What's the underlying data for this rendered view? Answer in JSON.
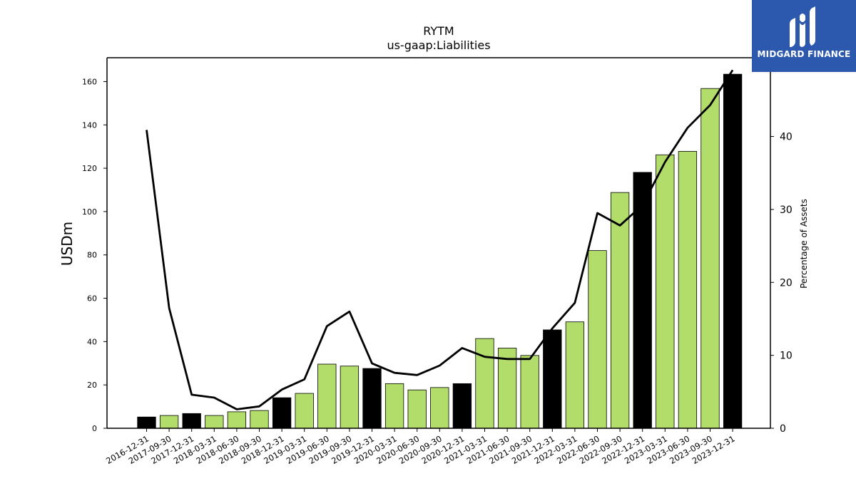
{
  "chart_data": {
    "type": "bar",
    "title": "RYTM",
    "subtitle": "us-gaap:Liabilities",
    "ylabel": "USDm",
    "y2label": "Percentage of Assets",
    "ylim": [
      0,
      171
    ],
    "y2lim": [
      0,
      50.8
    ],
    "yticks": [
      0,
      20,
      40,
      60,
      80,
      100,
      120,
      140,
      160
    ],
    "y2ticks": [
      0,
      10,
      20,
      30,
      40
    ],
    "categories": [
      "2016-12-31",
      "2017-09-30",
      "2017-12-31",
      "2018-03-31",
      "2018-06-30",
      "2018-09-30",
      "2018-12-31",
      "2019-03-31",
      "2019-06-30",
      "2019-09-30",
      "2019-12-31",
      "2020-03-31",
      "2020-06-30",
      "2020-09-30",
      "2020-12-31",
      "2021-03-31",
      "2021-06-30",
      "2021-09-30",
      "2021-12-31",
      "2022-03-31",
      "2022-06-30",
      "2022-09-30",
      "2022-12-31",
      "2023-03-31",
      "2023-06-30",
      "2023-09-30",
      "2023-12-31"
    ],
    "series": [
      {
        "values": [
          5.2,
          5.9,
          6.8,
          5.9,
          7.6,
          8.2,
          14.1,
          16.1,
          29.6,
          28.7,
          27.6,
          20.6,
          17.7,
          18.8,
          20.6,
          41.4,
          37.0,
          33.6,
          45.4,
          49.1,
          82.0,
          108.8,
          118.1,
          126.2,
          127.8,
          156.8,
          163.4
        ],
        "colors": [
          "#000000",
          "#b3dd6b",
          "#000000",
          "#b3dd6b",
          "#b3dd6b",
          "#b3dd6b",
          "#000000",
          "#b3dd6b",
          "#b3dd6b",
          "#b3dd6b",
          "#000000",
          "#b3dd6b",
          "#b3dd6b",
          "#b3dd6b",
          "#000000",
          "#b3dd6b",
          "#b3dd6b",
          "#b3dd6b",
          "#000000",
          "#b3dd6b",
          "#b3dd6b",
          "#b3dd6b",
          "#000000",
          "#b3dd6b",
          "#b3dd6b",
          "#b3dd6b",
          "#000000"
        ]
      },
      {
        "type": "line",
        "axis": "y2",
        "color": "#000000",
        "values": [
          40.9,
          16.5,
          4.6,
          4.2,
          2.6,
          3.0,
          5.3,
          6.7,
          14.0,
          16.0,
          8.9,
          7.6,
          7.3,
          8.6,
          11.0,
          9.8,
          9.5,
          9.5,
          13.7,
          17.2,
          29.5,
          27.8,
          30.6,
          36.5,
          41.2,
          44.3,
          49.1
        ]
      }
    ],
    "grid": false
  },
  "logo": {
    "text": "MIDGARD FINANCE",
    "color": "#2c58ad"
  }
}
